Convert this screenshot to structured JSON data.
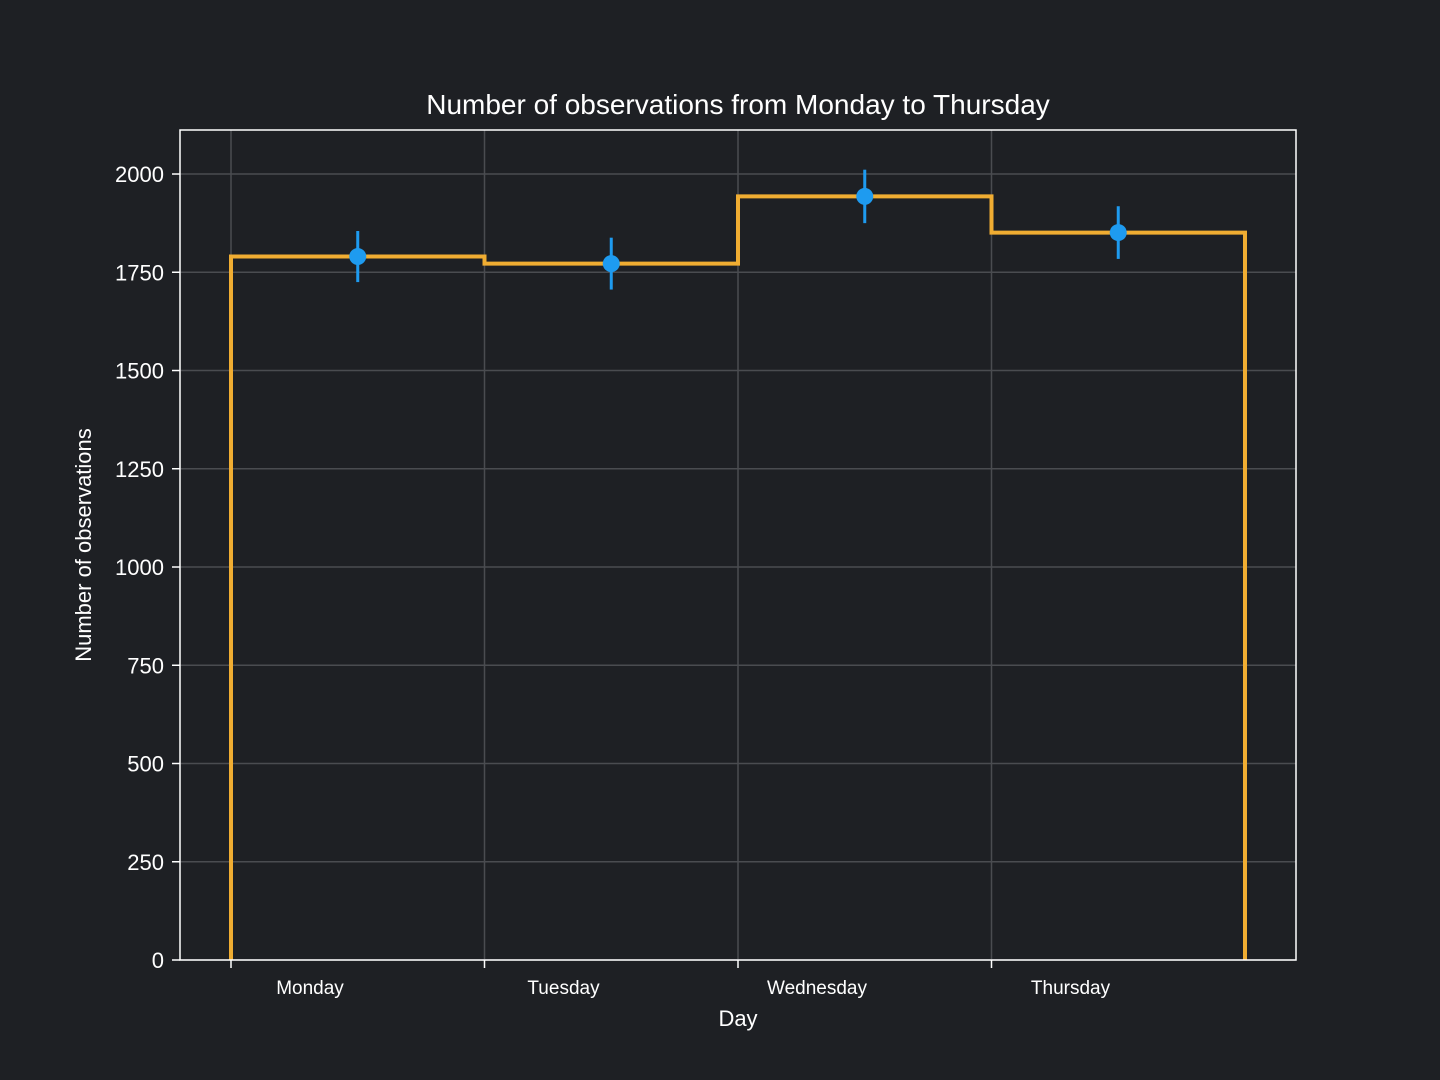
{
  "chart_data": {
    "type": "histogram",
    "title": "Number of observations from Monday to Thursday",
    "xlabel": "Day",
    "ylabel": "Number of observations",
    "categories": [
      "Monday",
      "Tuesday",
      "Wednesday",
      "Thursday"
    ],
    "values": [
      1790,
      1772,
      1943,
      1851
    ],
    "errors": [
      65,
      66,
      68,
      67
    ],
    "ylim": [
      0,
      2112
    ],
    "yticks": [
      0,
      250,
      500,
      750,
      1000,
      1250,
      1500,
      1750,
      2000
    ],
    "ytick_labels": [
      "0",
      "250",
      "500",
      "750",
      "1000",
      "1250",
      "1500",
      "1750",
      "2000"
    ],
    "grid": true,
    "colors": {
      "background": "#1e2024",
      "step_line": "#f0ad32",
      "points": "#1e9bf0",
      "grid": "#4a4c50",
      "text": "#ffffff"
    }
  }
}
